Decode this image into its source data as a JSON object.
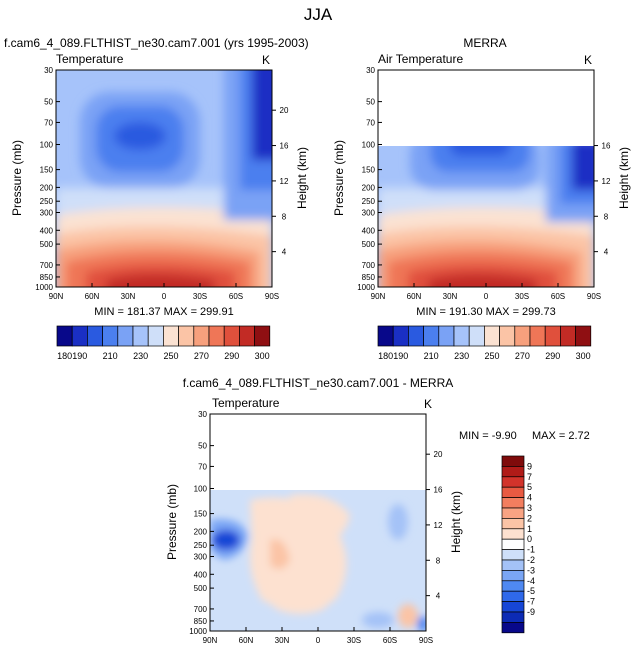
{
  "figure": {
    "title": "JJA",
    "colors": {
      "seq": [
        "#08088a",
        "#1a2fc4",
        "#2a5ae0",
        "#4b7fef",
        "#7aa2f5",
        "#a6c3fa",
        "#cfdff9",
        "#fbe2d2",
        "#fbc4a6",
        "#f7a07d",
        "#ef7657",
        "#e0503c",
        "#c22b25",
        "#8f0f12"
      ],
      "div": [
        "#08088a",
        "#0c2bb5",
        "#1646d6",
        "#2f69ea",
        "#4f89f2",
        "#7aa6f5",
        "#a4c2f7",
        "#cfe0f9",
        "#ffffff",
        "#fde1d0",
        "#fbc4a6",
        "#f8a383",
        "#f27e5f",
        "#e85a42",
        "#d2332b",
        "#b01b18",
        "#7f0b0b"
      ]
    }
  },
  "chart_data": [
    {
      "type": "contour",
      "subtitle": "f.cam6_4_089.FLTHIST_ne30.cam7.001 (yrs 1995-2003)",
      "panel_label": "Temperature",
      "units": "K",
      "xlabel": "",
      "ylabel": "Pressure (mb)",
      "ylabel_right": "Height (km)",
      "x_ticks": [
        "90N",
        "60N",
        "30N",
        "0",
        "30S",
        "60S",
        "90S"
      ],
      "y_ticks": [
        30,
        50,
        70,
        100,
        150,
        200,
        250,
        300,
        400,
        500,
        700,
        850,
        1000
      ],
      "y_right_ticks": [
        20,
        16,
        12,
        8,
        4
      ],
      "stats": "MIN = 181.37  MAX = 299.91",
      "colorbar_labels": [
        "180",
        "190",
        "210",
        "230",
        "250",
        "270",
        "290",
        "300"
      ]
    },
    {
      "type": "contour",
      "subtitle": "MERRA",
      "panel_label": "Air Temperature",
      "units": "K",
      "xlabel": "",
      "ylabel": "Pressure (mb)",
      "ylabel_right": "Height (km)",
      "x_ticks": [
        "90N",
        "60N",
        "30N",
        "0",
        "30S",
        "60S",
        "90S"
      ],
      "y_ticks": [
        30,
        50,
        70,
        100,
        150,
        200,
        250,
        300,
        400,
        500,
        700,
        850,
        1000
      ],
      "y_right_ticks": [
        16,
        12,
        8,
        4
      ],
      "stats": "MIN = 191.30  MAX = 299.73",
      "colorbar_labels": [
        "180",
        "190",
        "210",
        "230",
        "250",
        "270",
        "290",
        "300"
      ]
    },
    {
      "type": "contour",
      "subtitle": "f.cam6_4_089.FLTHIST_ne30.cam7.001 - MERRA",
      "panel_label": "Temperature",
      "units": "K",
      "xlabel": "",
      "ylabel": "Pressure (mb)",
      "ylabel_right": "Height (km)",
      "x_ticks": [
        "90N",
        "60N",
        "30N",
        "0",
        "30S",
        "60S",
        "90S"
      ],
      "y_ticks": [
        30,
        50,
        70,
        100,
        150,
        200,
        250,
        300,
        400,
        500,
        700,
        850,
        1000
      ],
      "y_right_ticks": [
        20,
        16,
        12,
        8,
        4
      ],
      "stats_min": "MIN = -9.90",
      "stats_max": "MAX =  2.72",
      "colorbar_labels": [
        "9",
        "7",
        "5",
        "4",
        "3",
        "2",
        "1",
        "0",
        "-1",
        "-2",
        "-3",
        "-4",
        "-5",
        "-7",
        "-9"
      ]
    }
  ]
}
